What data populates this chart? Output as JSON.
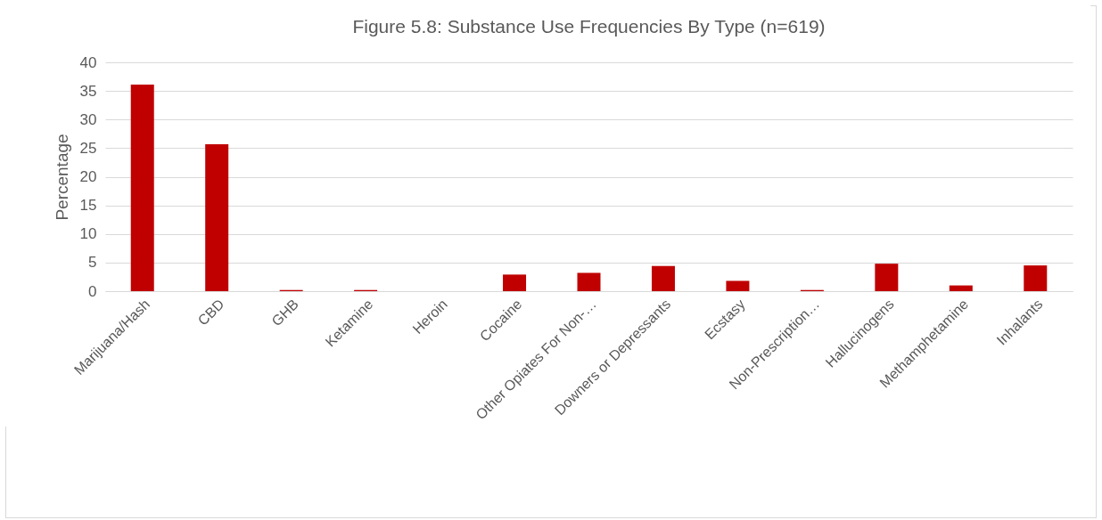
{
  "chart_data": {
    "type": "bar",
    "title": "Figure 5.8: Substance Use Frequencies By Type (n=619)",
    "ylabel": "Percentage",
    "categories": [
      "Marijuana/Hash",
      "CBD",
      "GHB",
      "Ketamine",
      "Heroin",
      "Cocaine",
      "Other Opiates For Non-…",
      "Downers or Depressants",
      "Ecstasy",
      "Non-Prescription…",
      "Hallucinogens",
      "Methamphetamine",
      "Inhalants"
    ],
    "values": [
      36.1,
      25.7,
      0.2,
      0.2,
      0,
      2.9,
      3.2,
      4.4,
      1.8,
      0.2,
      4.8,
      1.0,
      4.5
    ],
    "color": "#c00000",
    "ylim": [
      0,
      40
    ],
    "yticks": [
      0,
      5,
      10,
      15,
      20,
      25,
      30,
      35,
      40
    ],
    "grid": "y"
  }
}
